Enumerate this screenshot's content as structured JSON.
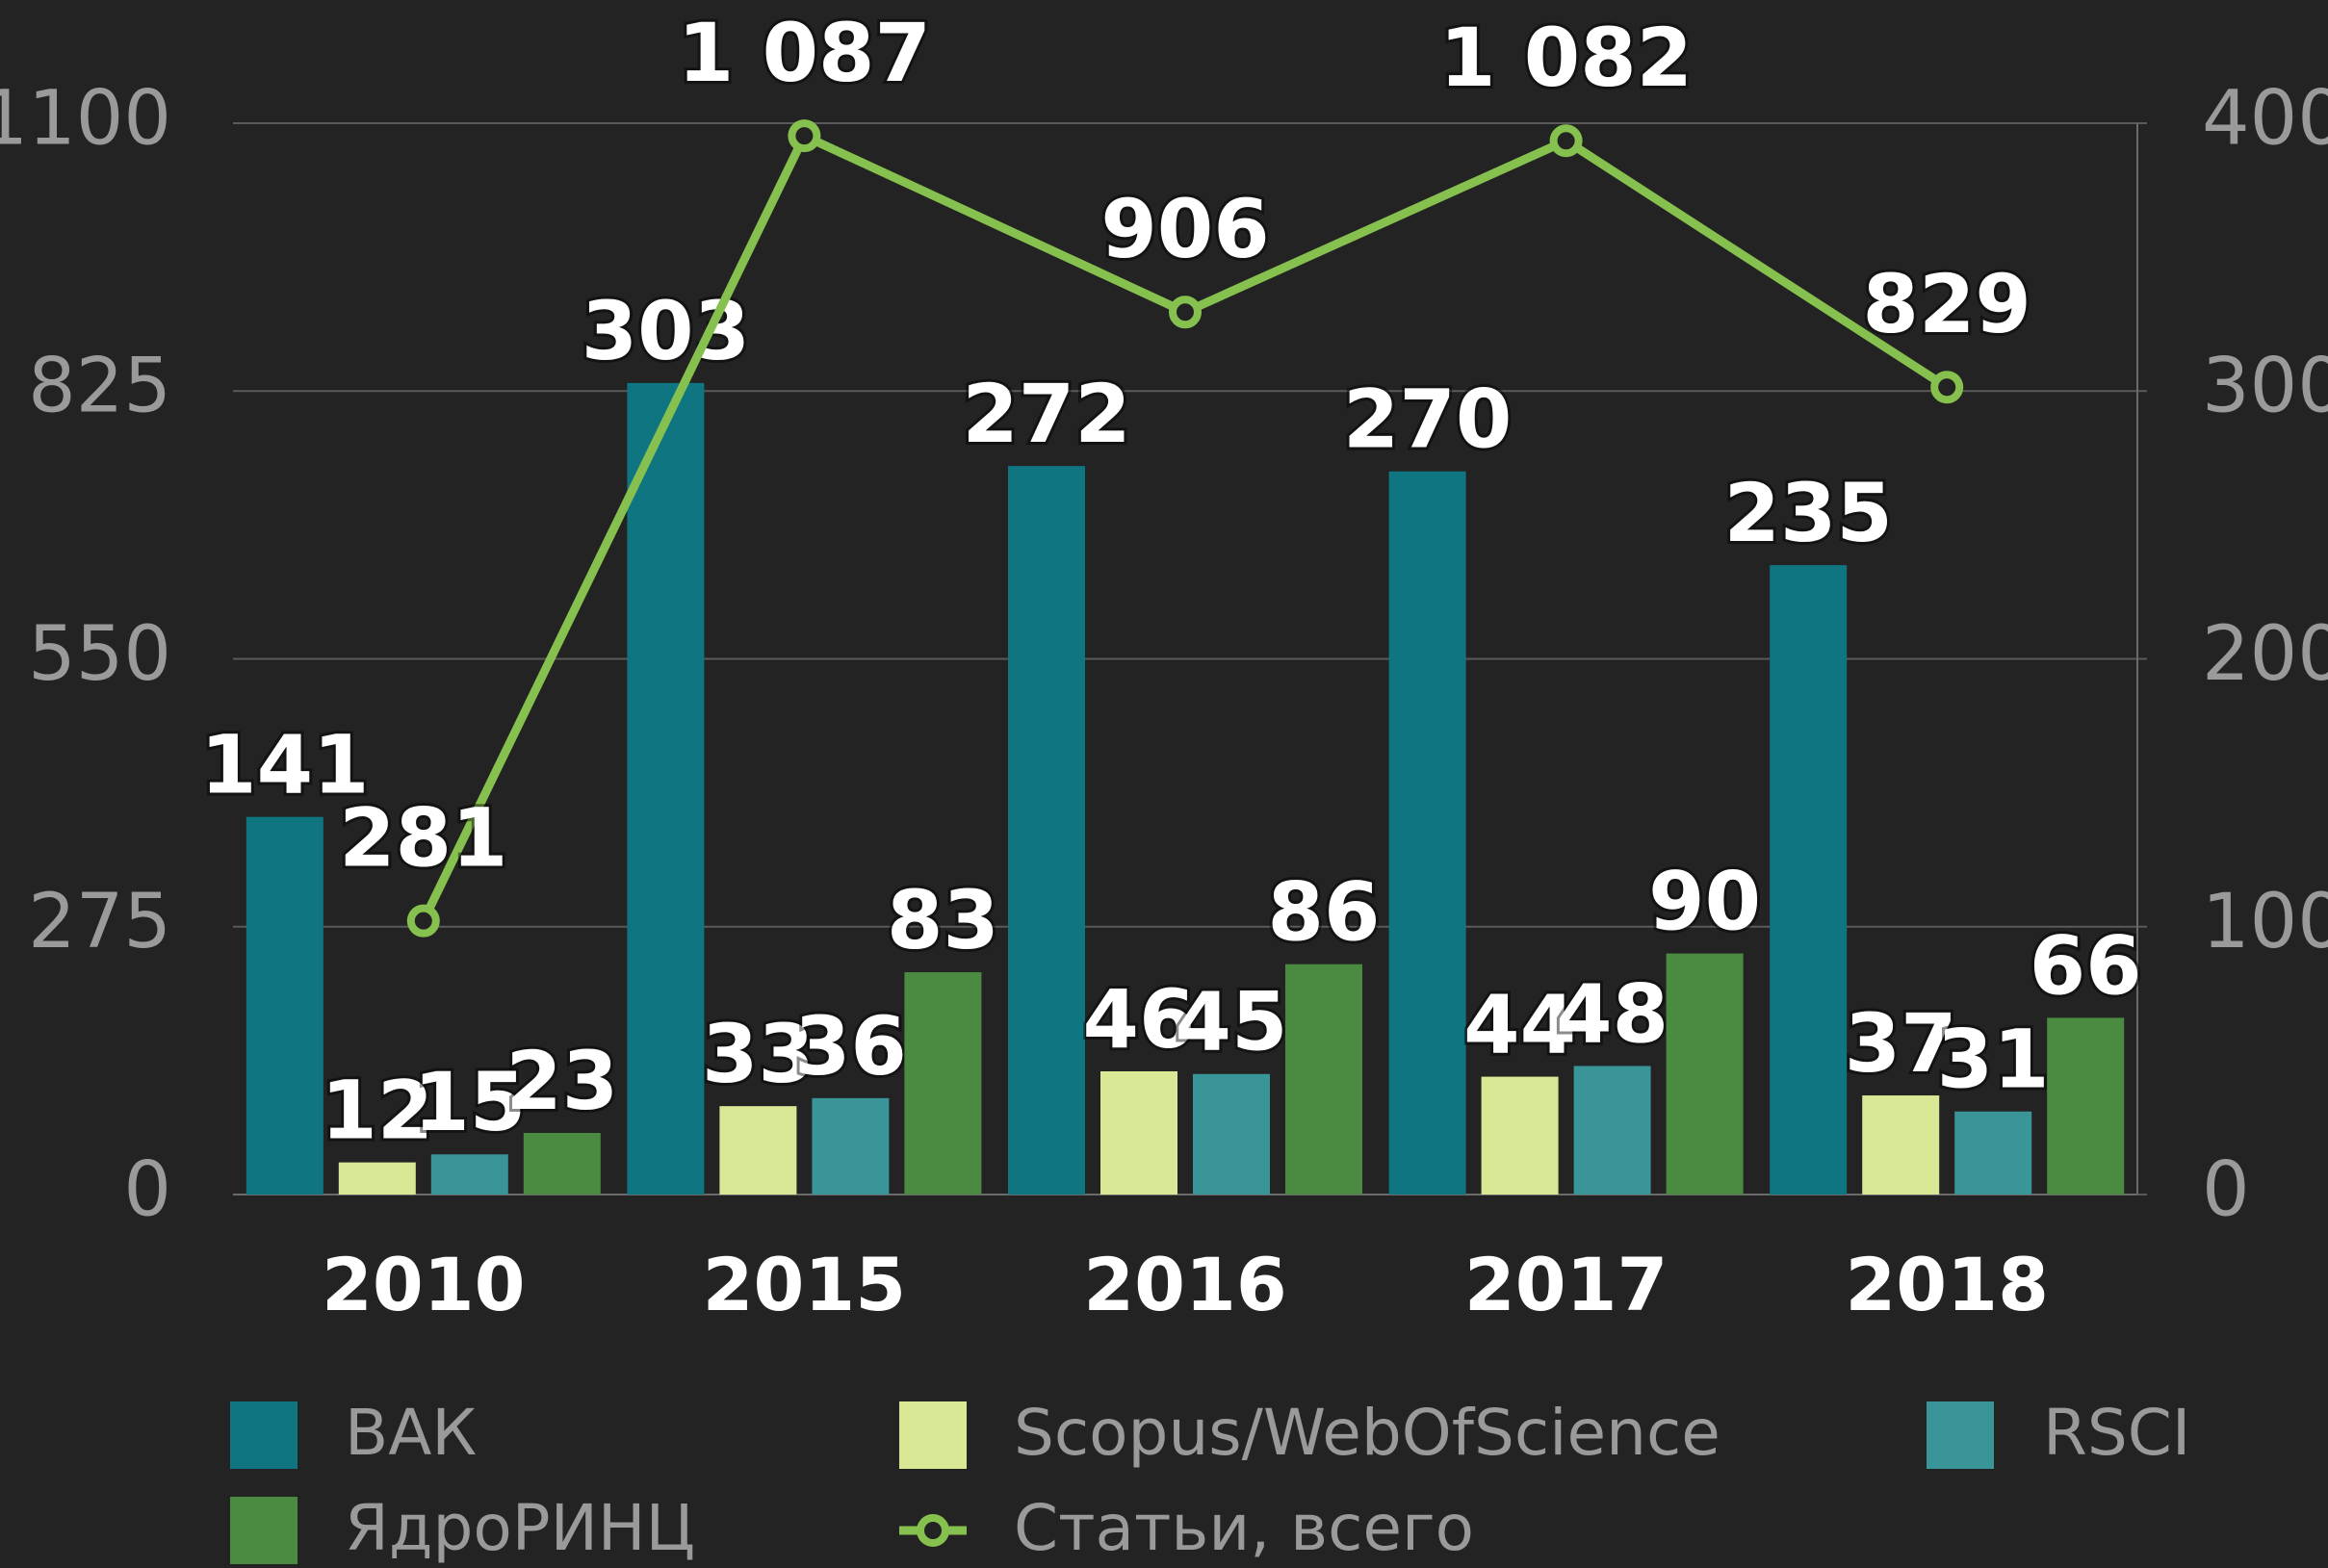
{
  "chart_data": {
    "type": "bar",
    "categories": [
      "2010",
      "2015",
      "2016",
      "2017",
      "2018"
    ],
    "ylim": [
      0,
      1100
    ],
    "yticks": [
      0,
      275,
      550,
      825,
      1100
    ],
    "y2lim": [
      0,
      400
    ],
    "y2ticks": [
      0,
      100,
      200,
      300,
      400
    ],
    "grid": true,
    "legend": "bottom",
    "series": [
      {
        "name": "ВАК",
        "color": "#0e7581",
        "type": "bar",
        "axis": "y2",
        "values": [
          141,
          303,
          272,
          270,
          235
        ]
      },
      {
        "name": "Scopus/WebOfScience",
        "color": "#d8e894",
        "type": "bar",
        "axis": "y2",
        "values": [
          12,
          33,
          46,
          44,
          37
        ]
      },
      {
        "name": "RSCI",
        "color": "#3a9599",
        "type": "bar",
        "axis": "y2",
        "values": [
          15,
          36,
          45,
          48,
          31
        ]
      },
      {
        "name": "ЯдроРИНЦ",
        "color": "#4a8b41",
        "type": "bar",
        "axis": "y2",
        "values": [
          23,
          83,
          86,
          90,
          66
        ]
      },
      {
        "name": "Статьи, всего",
        "color": "#86c04e",
        "type": "line",
        "values": [
          281,
          1087,
          906,
          1082,
          829
        ],
        "value_labels": [
          "281",
          "1 087",
          "906",
          "1 082",
          "829"
        ]
      }
    ]
  }
}
